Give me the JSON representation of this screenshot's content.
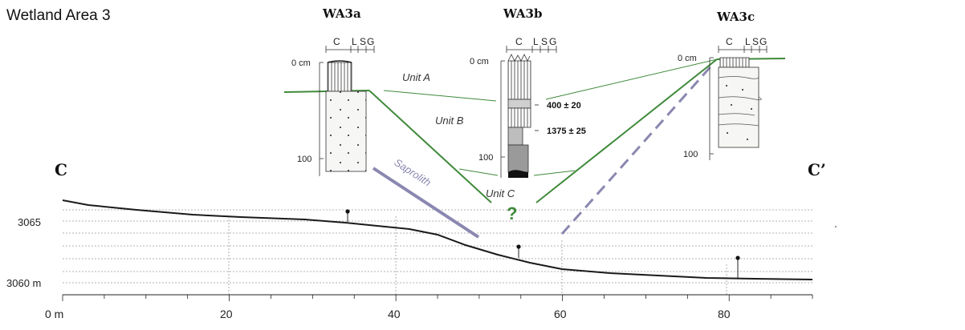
{
  "title": "Wetland Area 3",
  "cross_section": {
    "left_label": "C",
    "right_label": "C’",
    "y_ticks": [
      "3065",
      "3060 m"
    ],
    "x_ticks": [
      "0 m",
      "20",
      "40",
      "60",
      "80"
    ]
  },
  "cores": [
    {
      "name": "WA3a",
      "depth_top": "0 cm",
      "depth_100": "100",
      "header": {
        "c": "C",
        "l": "L",
        "s": "S",
        "g": "G"
      }
    },
    {
      "name": "WA3b",
      "depth_top": "0 cm",
      "depth_100": "100",
      "header": {
        "c": "C",
        "l": "L",
        "s": "S",
        "g": "G"
      }
    },
    {
      "name": "WA3c",
      "depth_top": "0 cm",
      "depth_100": "100",
      "header": {
        "c": "C",
        "l": "L",
        "s": "S",
        "g": "G"
      }
    }
  ],
  "dates": [
    "400 ± 20",
    "1375 ± 25"
  ],
  "units": [
    "Unit A",
    "Unit B",
    "Unit C"
  ],
  "saprolith": "Saprolith",
  "question_mark": "?",
  "colors": {
    "unit_line": "#3f8a3a",
    "saprolith": "#8a88b0",
    "grid": "#999999"
  }
}
